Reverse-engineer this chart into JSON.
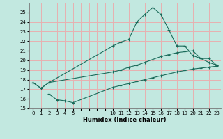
{
  "bg_color": "#c2e8e0",
  "grid_color": "#e8b0b0",
  "line_color": "#1a6b5a",
  "xlabel": "Humidex (Indice chaleur)",
  "xlim": [
    -0.5,
    23.5
  ],
  "ylim": [
    15,
    26
  ],
  "yticks": [
    15,
    16,
    17,
    18,
    19,
    20,
    21,
    22,
    23,
    24,
    25
  ],
  "xticks": [
    0,
    1,
    2,
    3,
    4,
    5,
    6,
    7,
    8,
    9,
    10,
    11,
    12,
    13,
    14,
    15,
    16,
    17,
    18,
    19,
    20,
    21,
    22,
    23
  ],
  "xtick_labels": [
    "0",
    "1",
    "2",
    "3",
    "4",
    "5",
    "",
    "",
    "",
    "",
    "10",
    "11",
    "12",
    "13",
    "14",
    "15",
    "16",
    "17",
    "18",
    "19",
    "20",
    "21",
    "22",
    "23"
  ],
  "line1_x": [
    0,
    1,
    2,
    10,
    11,
    12,
    13,
    14,
    15,
    16,
    17,
    18,
    19,
    20,
    21,
    22,
    23
  ],
  "line1_y": [
    17.7,
    17.1,
    17.7,
    21.5,
    21.9,
    22.2,
    24.0,
    24.8,
    25.5,
    24.8,
    23.2,
    21.5,
    21.5,
    20.5,
    20.2,
    20.2,
    19.5
  ],
  "line2_x": [
    0,
    1,
    2,
    10,
    11,
    12,
    13,
    14,
    15,
    16,
    17,
    18,
    19,
    20,
    21,
    22,
    23
  ],
  "line2_y": [
    17.7,
    17.1,
    17.7,
    18.8,
    19.0,
    19.3,
    19.5,
    19.8,
    20.1,
    20.4,
    20.6,
    20.8,
    20.9,
    21.0,
    20.2,
    19.8,
    19.5
  ],
  "line3_x": [
    2,
    3,
    4,
    5,
    10,
    11,
    12,
    13,
    14,
    15,
    16,
    17,
    18,
    19,
    20,
    21,
    22,
    23
  ],
  "line3_y": [
    16.5,
    15.9,
    15.8,
    15.6,
    17.2,
    17.4,
    17.6,
    17.8,
    18.0,
    18.2,
    18.4,
    18.6,
    18.8,
    18.95,
    19.1,
    19.2,
    19.3,
    19.4
  ]
}
